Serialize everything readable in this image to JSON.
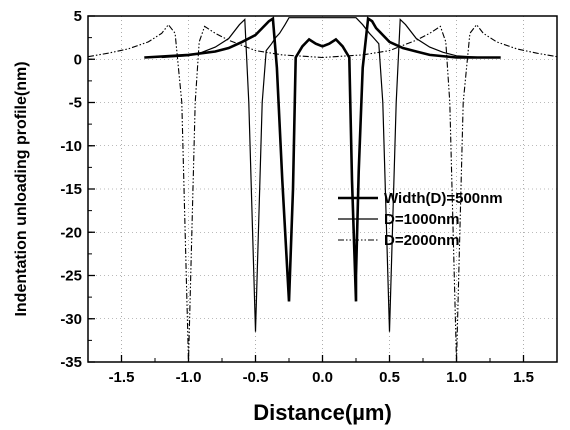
{
  "chart_data": {
    "type": "line",
    "title": "",
    "xlabel": "Distance(µm)",
    "ylabel": "Indentation unloading profile(nm)",
    "xlim": [
      -1.75,
      1.75
    ],
    "ylim": [
      -35,
      5
    ],
    "x_ticks": [
      "-1.5",
      "-1.0",
      "-0.5",
      "0.0",
      "0.5",
      "1.0",
      "1.5"
    ],
    "y_ticks": [
      "5",
      "0",
      "-5",
      "-10",
      "-15",
      "-20",
      "-25",
      "-30",
      "-35"
    ],
    "grid": "dotted",
    "legend_position": "center-right",
    "series": [
      {
        "name": "Width(D)=500nm",
        "style": "solid-thick",
        "x": [
          -1.33,
          -1.0,
          -0.8,
          -0.7,
          -0.6,
          -0.5,
          -0.45,
          -0.4,
          -0.37,
          -0.34,
          -0.3,
          -0.25,
          -0.22,
          -0.2,
          -0.15,
          -0.1,
          -0.05,
          0.0,
          0.05,
          0.1,
          0.15,
          0.2,
          0.22,
          0.25,
          0.25,
          0.27,
          0.3,
          0.34,
          0.37,
          0.4,
          0.45,
          0.5,
          0.6,
          0.7,
          0.8,
          1.0,
          1.33
        ],
        "values": [
          0.2,
          0.5,
          0.9,
          1.3,
          2.0,
          2.8,
          3.6,
          4.4,
          4.7,
          -1.0,
          -14.0,
          -28.0,
          -15.0,
          0.2,
          1.5,
          2.3,
          1.8,
          1.5,
          1.8,
          2.3,
          1.5,
          0.2,
          -14.0,
          -28.0,
          -25.0,
          -13.0,
          -1.0,
          4.7,
          4.4,
          3.6,
          2.8,
          2.0,
          1.3,
          0.9,
          0.5,
          0.2,
          0.2
        ]
      },
      {
        "name": "D=1000nm",
        "style": "solid-thin",
        "x": [
          -1.2,
          -1.0,
          -0.9,
          -0.8,
          -0.7,
          -0.62,
          -0.58,
          -0.55,
          -0.5,
          -0.45,
          -0.42,
          -0.38,
          -0.35,
          -0.32,
          -0.28,
          -0.25,
          0.25,
          0.3,
          0.35,
          0.38,
          0.42,
          0.45,
          0.5,
          0.55,
          0.58,
          0.62,
          0.7,
          0.8,
          0.9,
          1.0,
          1.2
        ],
        "values": [
          0.2,
          0.4,
          0.8,
          1.4,
          2.4,
          4.0,
          4.6,
          -5.0,
          -31.5,
          -5.0,
          1.0,
          1.8,
          2.5,
          3.0,
          4.0,
          4.8,
          4.8,
          4.0,
          3.0,
          2.5,
          1.8,
          -5.0,
          -31.5,
          -5.0,
          4.6,
          4.0,
          2.4,
          1.4,
          0.8,
          0.4,
          0.2
        ]
      },
      {
        "name": "D=2000nm",
        "style": "dash-dot-dot",
        "x": [
          -1.75,
          -1.6,
          -1.45,
          -1.3,
          -1.2,
          -1.15,
          -1.1,
          -1.05,
          -1.0,
          -0.95,
          -0.92,
          -0.88,
          -0.8,
          -0.7,
          -0.5,
          -0.3,
          0.0,
          0.3,
          0.5,
          0.7,
          0.8,
          0.88,
          0.92,
          0.95,
          1.0,
          1.05,
          1.1,
          1.15,
          1.2,
          1.3,
          1.45,
          1.6,
          1.75
        ],
        "values": [
          0.3,
          0.7,
          1.2,
          2.0,
          3.0,
          4.0,
          3.0,
          -5.0,
          -35.0,
          -5.0,
          2.0,
          3.8,
          3.0,
          2.2,
          1.0,
          0.5,
          0.2,
          0.5,
          1.0,
          2.2,
          3.0,
          3.8,
          2.0,
          -5.0,
          -35.0,
          -5.0,
          3.0,
          4.0,
          3.0,
          2.0,
          1.2,
          0.7,
          0.3
        ]
      }
    ]
  }
}
